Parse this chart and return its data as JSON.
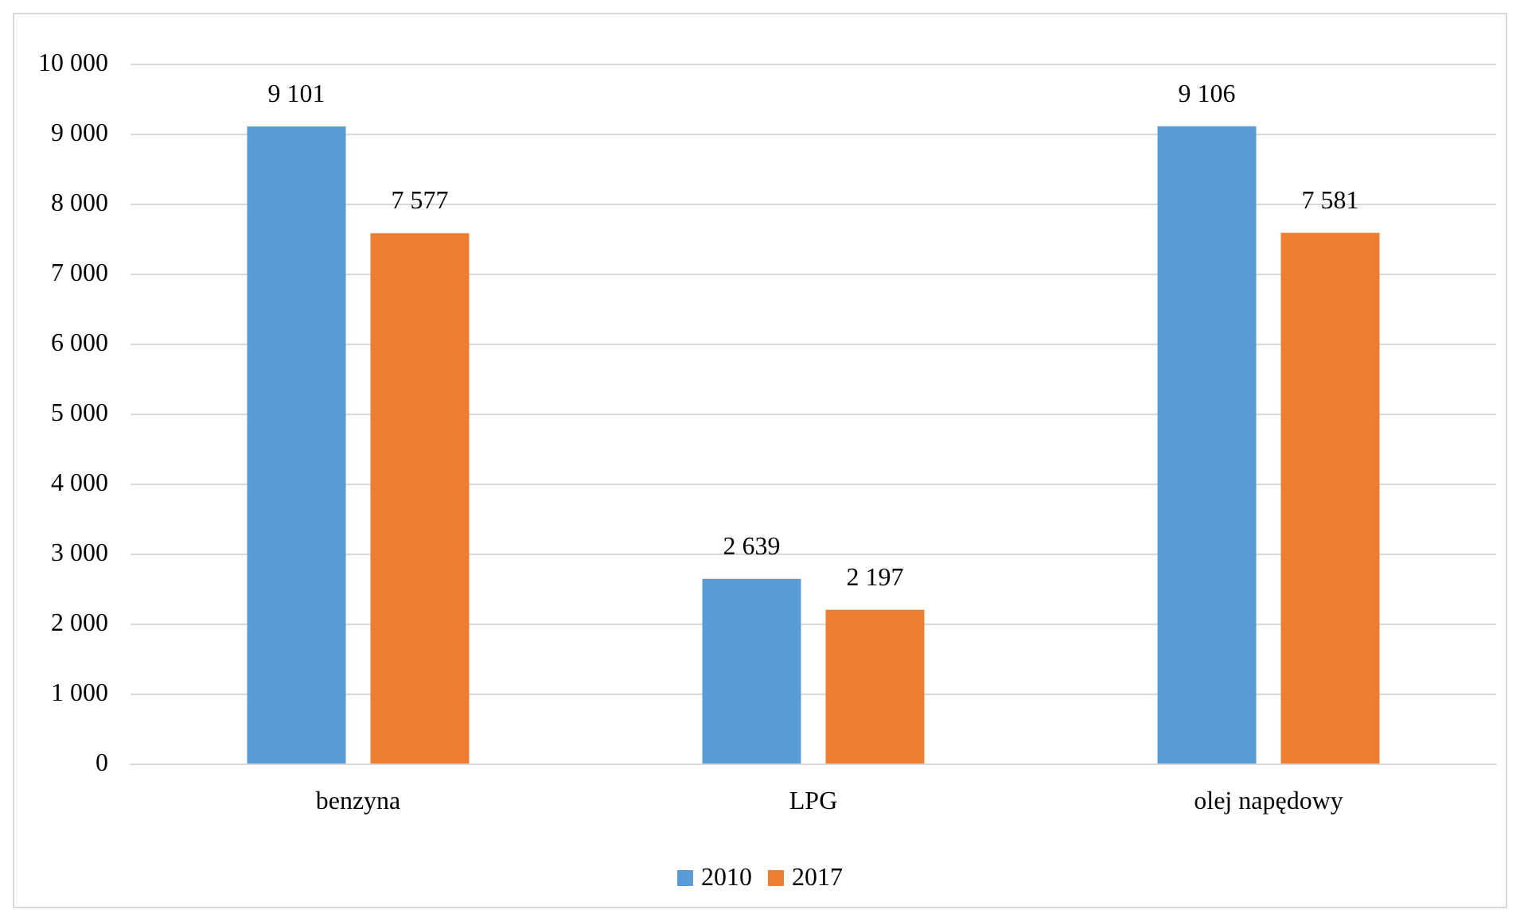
{
  "chart_data": {
    "type": "bar",
    "categories": [
      "benzyna",
      "LPG",
      "olej napędowy"
    ],
    "series": [
      {
        "name": "2010",
        "color": "#5b9bd5",
        "values": [
          9101,
          2639,
          9106
        ],
        "value_labels": [
          "9 101",
          "2 639",
          "9 106"
        ]
      },
      {
        "name": "2017",
        "color": "#ed7d31",
        "values": [
          7577,
          2197,
          7581
        ],
        "value_labels": [
          "7 577",
          "2 197",
          "7 581"
        ]
      }
    ],
    "ylim": [
      0,
      10000
    ],
    "yticks": [
      {
        "value": 0,
        "label": "0"
      },
      {
        "value": 1000,
        "label": "1 000"
      },
      {
        "value": 2000,
        "label": "2 000"
      },
      {
        "value": 3000,
        "label": "3 000"
      },
      {
        "value": 4000,
        "label": "4 000"
      },
      {
        "value": 5000,
        "label": "5 000"
      },
      {
        "value": 6000,
        "label": "6 000"
      },
      {
        "value": 7000,
        "label": "7 000"
      },
      {
        "value": 8000,
        "label": "8 000"
      },
      {
        "value": 9000,
        "label": "9 000"
      },
      {
        "value": 10000,
        "label": "10 000"
      }
    ],
    "grid": "y",
    "legend": "bottom"
  }
}
